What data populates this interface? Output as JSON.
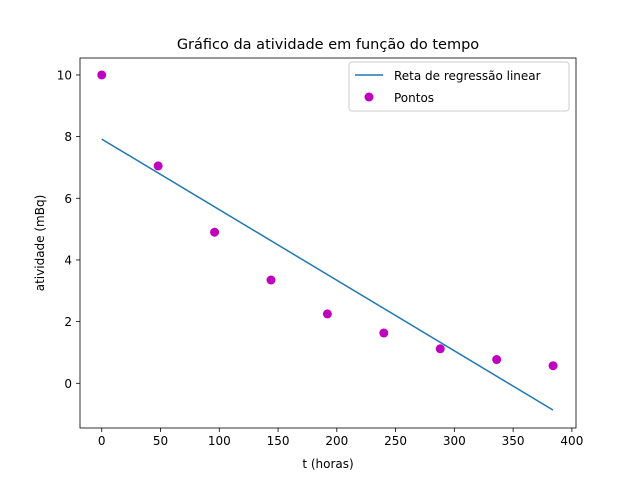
{
  "chart_data": {
    "type": "scatter",
    "title": "Gráfico da atividade em função do tempo",
    "xlabel": "t (horas)",
    "ylabel": "atividade (mBq)",
    "xlim": [
      -18.5,
      403.5
    ],
    "ylim": [
      -1.45,
      10.55
    ],
    "xticks": [
      0,
      50,
      100,
      150,
      200,
      250,
      300,
      350,
      400
    ],
    "yticks": [
      0,
      2,
      4,
      6,
      8,
      10
    ],
    "grid": false,
    "legend_position": "upper right",
    "series": [
      {
        "name": "Reta de regressão linear",
        "kind": "line",
        "color": "#1f77b4",
        "x": [
          0,
          384
        ],
        "y": [
          7.92,
          -0.87
        ]
      },
      {
        "name": "Pontos",
        "kind": "scatter",
        "color": "#bf00bf",
        "x": [
          0,
          48,
          96,
          144,
          192,
          240,
          288,
          336,
          384
        ],
        "y": [
          10.0,
          7.05,
          4.9,
          3.35,
          2.25,
          1.63,
          1.12,
          0.77,
          0.57
        ]
      }
    ]
  }
}
